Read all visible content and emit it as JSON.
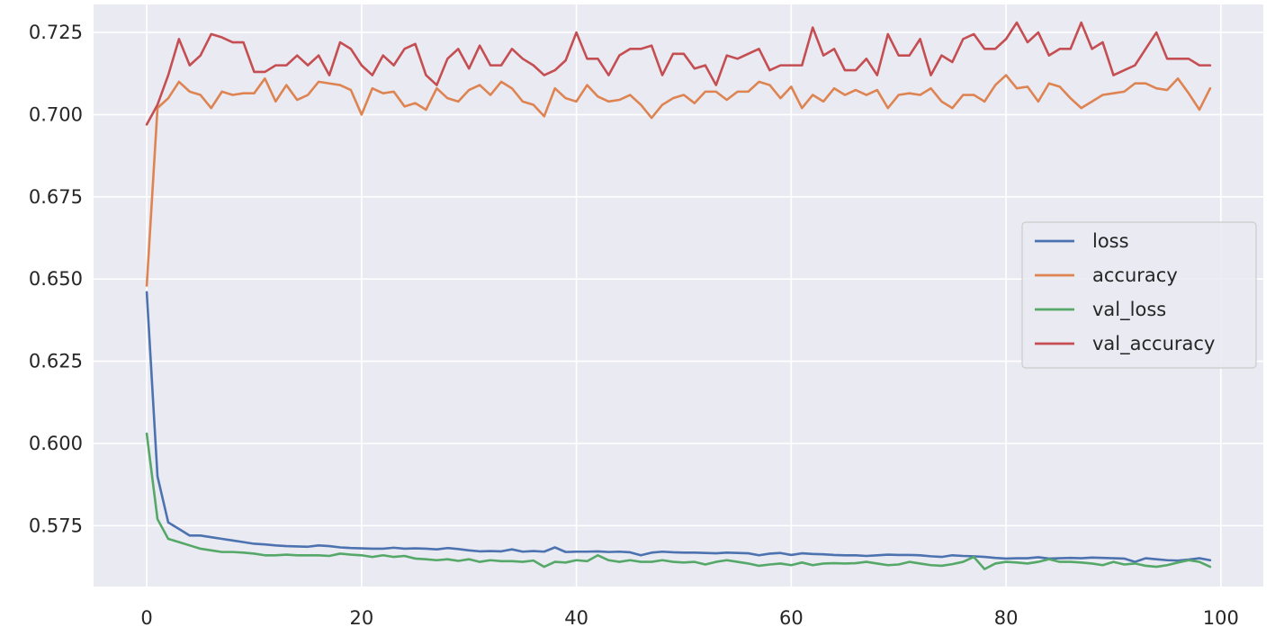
{
  "chart_data": {
    "type": "line",
    "title": "",
    "xlabel": "",
    "ylabel": "",
    "xlim": [
      -4.95,
      103.95
    ],
    "ylim": [
      0.5565,
      0.7335
    ],
    "xticks": [
      0,
      20,
      40,
      60,
      80,
      100
    ],
    "xtick_labels": [
      "0",
      "20",
      "40",
      "60",
      "80",
      "100"
    ],
    "yticks": [
      0.575,
      0.6,
      0.625,
      0.65,
      0.675,
      0.7,
      0.725
    ],
    "ytick_labels": [
      "0.575",
      "0.600",
      "0.625",
      "0.650",
      "0.675",
      "0.700",
      "0.725"
    ],
    "grid": true,
    "legend_position": "center-right",
    "background_color": "#EAEAF2",
    "grid_color": "#FFFFFF",
    "series": [
      {
        "name": "loss",
        "color": "#4C72B0",
        "values": [
          0.646,
          0.59,
          0.576,
          0.574,
          0.572,
          0.572,
          0.5715,
          0.571,
          0.5705,
          0.57,
          0.5695,
          0.5693,
          0.569,
          0.5688,
          0.5687,
          0.5686,
          0.569,
          0.5688,
          0.5684,
          0.5682,
          0.5681,
          0.568,
          0.568,
          0.5683,
          0.568,
          0.5681,
          0.568,
          0.5678,
          0.5682,
          0.5679,
          0.5675,
          0.5672,
          0.5673,
          0.5672,
          0.5678,
          0.5671,
          0.5673,
          0.5671,
          0.5684,
          0.567,
          0.5671,
          0.5671,
          0.5672,
          0.567,
          0.5671,
          0.5669,
          0.566,
          0.5668,
          0.5671,
          0.5669,
          0.5668,
          0.5668,
          0.5667,
          0.5666,
          0.5668,
          0.5667,
          0.5666,
          0.566,
          0.5665,
          0.5667,
          0.5661,
          0.5666,
          0.5664,
          0.5663,
          0.5661,
          0.566,
          0.566,
          0.5658,
          0.566,
          0.5662,
          0.5661,
          0.5661,
          0.566,
          0.5657,
          0.5655,
          0.566,
          0.5658,
          0.5657,
          0.5655,
          0.5652,
          0.565,
          0.5651,
          0.5651,
          0.5654,
          0.565,
          0.5651,
          0.5652,
          0.5651,
          0.5653,
          0.5652,
          0.5651,
          0.565,
          0.564,
          0.5651,
          0.5648,
          0.5645,
          0.5644,
          0.5647,
          0.5651,
          0.5645
        ]
      },
      {
        "name": "accuracy",
        "color": "#DD8452",
        "values": [
          0.648,
          0.702,
          0.705,
          0.71,
          0.707,
          0.706,
          0.702,
          0.707,
          0.706,
          0.7065,
          0.7065,
          0.711,
          0.704,
          0.709,
          0.7045,
          0.706,
          0.71,
          0.7095,
          0.709,
          0.7075,
          0.7,
          0.708,
          0.7065,
          0.707,
          0.7025,
          0.7035,
          0.7015,
          0.708,
          0.705,
          0.704,
          0.7075,
          0.709,
          0.706,
          0.71,
          0.708,
          0.704,
          0.703,
          0.6995,
          0.708,
          0.705,
          0.704,
          0.709,
          0.7055,
          0.704,
          0.7045,
          0.706,
          0.703,
          0.699,
          0.703,
          0.705,
          0.706,
          0.7035,
          0.707,
          0.707,
          0.7045,
          0.707,
          0.707,
          0.71,
          0.709,
          0.705,
          0.7085,
          0.702,
          0.706,
          0.704,
          0.708,
          0.706,
          0.7075,
          0.706,
          0.7075,
          0.702,
          0.706,
          0.7065,
          0.706,
          0.708,
          0.704,
          0.702,
          0.706,
          0.706,
          0.704,
          0.709,
          0.712,
          0.708,
          0.7085,
          0.704,
          0.7095,
          0.7085,
          0.705,
          0.702,
          0.704,
          0.706,
          0.7065,
          0.707,
          0.7095,
          0.7095,
          0.708,
          0.7075,
          0.711,
          0.7065,
          0.7015,
          0.708
        ]
      },
      {
        "name": "val_loss",
        "color": "#55A868",
        "values": [
          0.603,
          0.577,
          0.571,
          0.57,
          0.569,
          0.568,
          0.5675,
          0.567,
          0.567,
          0.5668,
          0.5665,
          0.566,
          0.566,
          0.5662,
          0.566,
          0.566,
          0.566,
          0.5658,
          0.5665,
          0.5662,
          0.566,
          0.5655,
          0.566,
          0.5655,
          0.5658,
          0.565,
          0.5648,
          0.5645,
          0.5648,
          0.5643,
          0.5648,
          0.564,
          0.5645,
          0.5642,
          0.5642,
          0.564,
          0.5644,
          0.5625,
          0.564,
          0.5638,
          0.5645,
          0.5642,
          0.566,
          0.5645,
          0.564,
          0.5645,
          0.564,
          0.564,
          0.5645,
          0.564,
          0.5638,
          0.564,
          0.5632,
          0.564,
          0.5645,
          0.564,
          0.5635,
          0.5628,
          0.5632,
          0.5635,
          0.563,
          0.5638,
          0.563,
          0.5635,
          0.5636,
          0.5635,
          0.5636,
          0.564,
          0.5635,
          0.563,
          0.5632,
          0.564,
          0.5635,
          0.563,
          0.5628,
          0.5633,
          0.564,
          0.5655,
          0.5618,
          0.5635,
          0.564,
          0.5638,
          0.5635,
          0.564,
          0.5648,
          0.564,
          0.564,
          0.5638,
          0.5635,
          0.563,
          0.564,
          0.5632,
          0.5635,
          0.5628,
          0.5625,
          0.563,
          0.5638,
          0.5645,
          0.564,
          0.5625
        ]
      },
      {
        "name": "val_accuracy",
        "color": "#C44E52",
        "values": [
          0.697,
          0.703,
          0.712,
          0.723,
          0.715,
          0.718,
          0.7245,
          0.7235,
          0.722,
          0.722,
          0.713,
          0.713,
          0.715,
          0.715,
          0.718,
          0.715,
          0.718,
          0.712,
          0.722,
          0.72,
          0.715,
          0.712,
          0.718,
          0.715,
          0.72,
          0.7215,
          0.712,
          0.709,
          0.717,
          0.72,
          0.714,
          0.721,
          0.715,
          0.715,
          0.72,
          0.717,
          0.715,
          0.712,
          0.7135,
          0.7165,
          0.725,
          0.717,
          0.717,
          0.712,
          0.718,
          0.72,
          0.72,
          0.721,
          0.712,
          0.7185,
          0.7185,
          0.714,
          0.715,
          0.709,
          0.718,
          0.717,
          0.7185,
          0.72,
          0.7135,
          0.715,
          0.715,
          0.715,
          0.7265,
          0.718,
          0.72,
          0.7135,
          0.7135,
          0.717,
          0.712,
          0.7245,
          0.718,
          0.718,
          0.723,
          0.712,
          0.718,
          0.716,
          0.723,
          0.7245,
          0.72,
          0.72,
          0.723,
          0.728,
          0.722,
          0.725,
          0.718,
          0.72,
          0.72,
          0.728,
          0.72,
          0.722,
          0.712,
          0.7135,
          0.715,
          0.72,
          0.725,
          0.717,
          0.717,
          0.717,
          0.715,
          0.715
        ]
      }
    ]
  }
}
